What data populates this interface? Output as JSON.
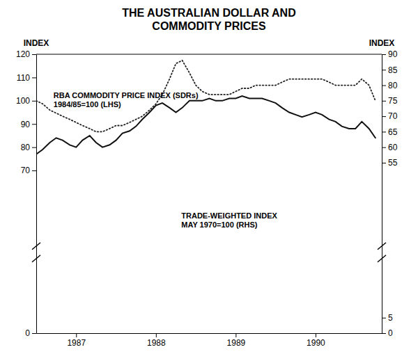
{
  "chart_data": {
    "type": "line",
    "title": "THE AUSTRALIAN DOLLAR AND\nCOMMODITY PRICES",
    "ylabel": "INDEX",
    "y2label": "INDEX",
    "x": [
      1986.5,
      1986.58,
      1986.67,
      1986.75,
      1986.83,
      1986.92,
      1987.0,
      1987.08,
      1987.17,
      1987.25,
      1987.33,
      1987.42,
      1987.5,
      1987.58,
      1987.67,
      1987.75,
      1987.83,
      1987.92,
      1988.0,
      1988.08,
      1988.17,
      1988.25,
      1988.33,
      1988.42,
      1988.5,
      1988.58,
      1988.67,
      1988.75,
      1988.83,
      1988.92,
      1989.0,
      1989.08,
      1989.17,
      1989.25,
      1989.33,
      1989.42,
      1989.5,
      1989.58,
      1989.67,
      1989.75,
      1989.83,
      1989.92,
      1990.0,
      1990.08,
      1990.17,
      1990.25,
      1990.33,
      1990.42,
      1990.5,
      1990.58,
      1990.67,
      1990.75
    ],
    "xlim": [
      1986.5,
      1990.83
    ],
    "xticks": [
      1987,
      1988,
      1989,
      1990
    ],
    "ylim": [
      0,
      120
    ],
    "yticks": [
      0,
      70,
      80,
      90,
      100,
      110,
      120
    ],
    "y2lim": [
      0,
      90
    ],
    "y2ticks": [
      0,
      5,
      55,
      60,
      65,
      70,
      75,
      80,
      85,
      90
    ],
    "series": [
      {
        "name": "RBA COMMODITY PRICE INDEX (SDRs)\n1984/85=100 (LHS)",
        "color": "#111111",
        "line_style": "solid",
        "values": [
          77,
          79,
          82,
          84,
          83,
          81,
          80,
          83,
          85,
          82,
          80,
          81,
          83,
          86,
          87,
          89,
          92,
          95,
          98,
          99,
          97,
          95,
          97,
          100,
          100,
          100,
          101,
          100,
          100,
          101,
          101,
          102,
          101,
          101,
          101,
          100,
          99,
          97,
          95,
          94,
          93,
          94,
          95,
          94,
          92,
          91,
          89,
          88,
          88,
          91,
          88,
          84
        ]
      },
      {
        "name": "TRADE-WEIGHTED INDEX\nMAY 1970=100 (RHS)",
        "color": "#222222",
        "line_style": "dotted",
        "axis": "y2",
        "values": [
          75,
          74,
          72,
          71,
          70,
          69,
          68,
          67,
          66,
          65,
          65,
          66,
          67,
          67,
          68,
          69,
          70,
          72,
          74,
          77,
          82,
          87,
          88,
          84,
          80,
          78,
          77,
          77,
          77,
          77,
          78,
          79,
          79,
          80,
          80,
          80,
          80,
          81,
          82,
          82,
          82,
          82,
          82,
          82,
          81,
          80,
          80,
          80,
          80,
          82,
          80,
          75
        ]
      }
    ]
  }
}
